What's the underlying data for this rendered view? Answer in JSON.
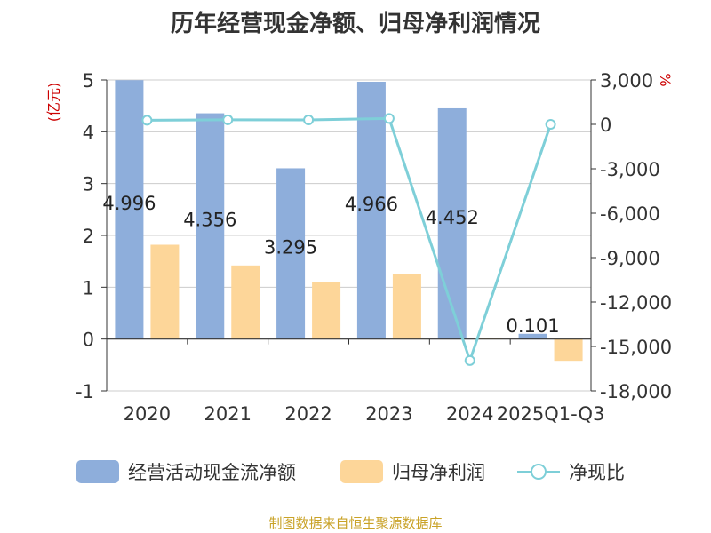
{
  "title": "历年经营现金净额、归母净利润情况",
  "source": "制图数据来自恒生聚源数据库",
  "chart_data": {
    "type": "bar",
    "categories": [
      "2020",
      "2021",
      "2022",
      "2023",
      "2024",
      "2025Q1-Q3"
    ],
    "y_left": {
      "unit_label": "(亿元)",
      "range": [
        -1,
        5
      ],
      "ticks": [
        "5",
        "4",
        "3",
        "2",
        "1",
        "0",
        "-1"
      ]
    },
    "y_right": {
      "unit_label": "%",
      "range": [
        -18000,
        3000
      ],
      "ticks": [
        "3,000",
        "0",
        "-3,000",
        "-6,000",
        "-9,000",
        "-12,000",
        "-15,000",
        "-18,000"
      ]
    },
    "series": [
      {
        "name": "经营活动现金流净额",
        "type": "bar",
        "axis": "left",
        "color": "#8eaedb",
        "values": [
          4.996,
          4.356,
          3.295,
          4.966,
          4.452,
          0.101
        ],
        "labels": [
          "4.996",
          "4.356",
          "3.295",
          "4.966",
          "4.452",
          "0.101"
        ]
      },
      {
        "name": "归母净利润",
        "type": "bar",
        "axis": "left",
        "color": "#fdd699",
        "values": [
          1.82,
          1.42,
          1.1,
          1.25,
          0.02,
          -0.42
        ]
      },
      {
        "name": "净现比",
        "type": "line",
        "axis": "right",
        "color": "#7ecfd8",
        "values": [
          274,
          306,
          300,
          397,
          -15950,
          0
        ]
      }
    ],
    "grid": true,
    "legend_position": "bottom"
  }
}
